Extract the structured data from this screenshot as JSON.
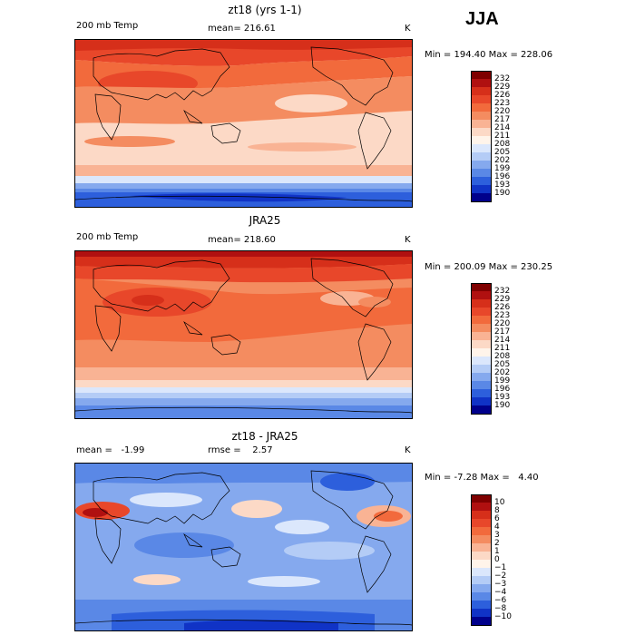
{
  "season_label": "JJA",
  "panels": [
    {
      "title": "zt18 (yrs 1-1)",
      "left_label": "200 mb Temp",
      "center_label": "mean= 216.61",
      "units": "K",
      "stats": "Min = 194.40 Max = 228.06",
      "colorbar": {
        "labels": [
          "232",
          "229",
          "226",
          "223",
          "220",
          "217",
          "214",
          "211",
          "208",
          "205",
          "202",
          "199",
          "196",
          "193",
          "190"
        ],
        "colors": [
          "#7f0000",
          "#b01010",
          "#d62f1a",
          "#e8472a",
          "#f26a3c",
          "#f48c60",
          "#f9b394",
          "#fcd9c6",
          "#fff4ea",
          "#dbe7fc",
          "#b4ccf6",
          "#85a9ee",
          "#5a88e6",
          "#2d5fdc",
          "#1033c6",
          "#00008b"
        ]
      }
    },
    {
      "title": "JRA25",
      "left_label": "200 mb Temp",
      "center_label": "mean= 218.60",
      "units": "K",
      "stats": "Min = 200.09 Max = 230.25",
      "colorbar": {
        "labels": [
          "232",
          "229",
          "226",
          "223",
          "220",
          "217",
          "214",
          "211",
          "208",
          "205",
          "202",
          "199",
          "196",
          "193",
          "190"
        ],
        "colors": [
          "#7f0000",
          "#b01010",
          "#d62f1a",
          "#e8472a",
          "#f26a3c",
          "#f48c60",
          "#f9b394",
          "#fcd9c6",
          "#fff4ea",
          "#dbe7fc",
          "#b4ccf6",
          "#85a9ee",
          "#5a88e6",
          "#2d5fdc",
          "#1033c6",
          "#00008b"
        ]
      }
    },
    {
      "title": "zt18 - JRA25",
      "left_label": "mean =   -1.99",
      "center_label": "rmse =    2.57",
      "units": "K",
      "stats": "Min = -7.28 Max =   4.40",
      "colorbar": {
        "labels": [
          "10",
          "8",
          "6",
          "4",
          "3",
          "2",
          "1",
          "0",
          "−1",
          "−2",
          "−3",
          "−4",
          "−6",
          "−8",
          "−10"
        ],
        "colors": [
          "#7f0000",
          "#b01010",
          "#d62f1a",
          "#e8472a",
          "#f26a3c",
          "#f48c60",
          "#f9b394",
          "#fcd9c6",
          "#fff4ea",
          "#dbe7fc",
          "#b4ccf6",
          "#85a9ee",
          "#5a88e6",
          "#2d5fdc",
          "#1033c6",
          "#00008b"
        ]
      }
    }
  ]
}
